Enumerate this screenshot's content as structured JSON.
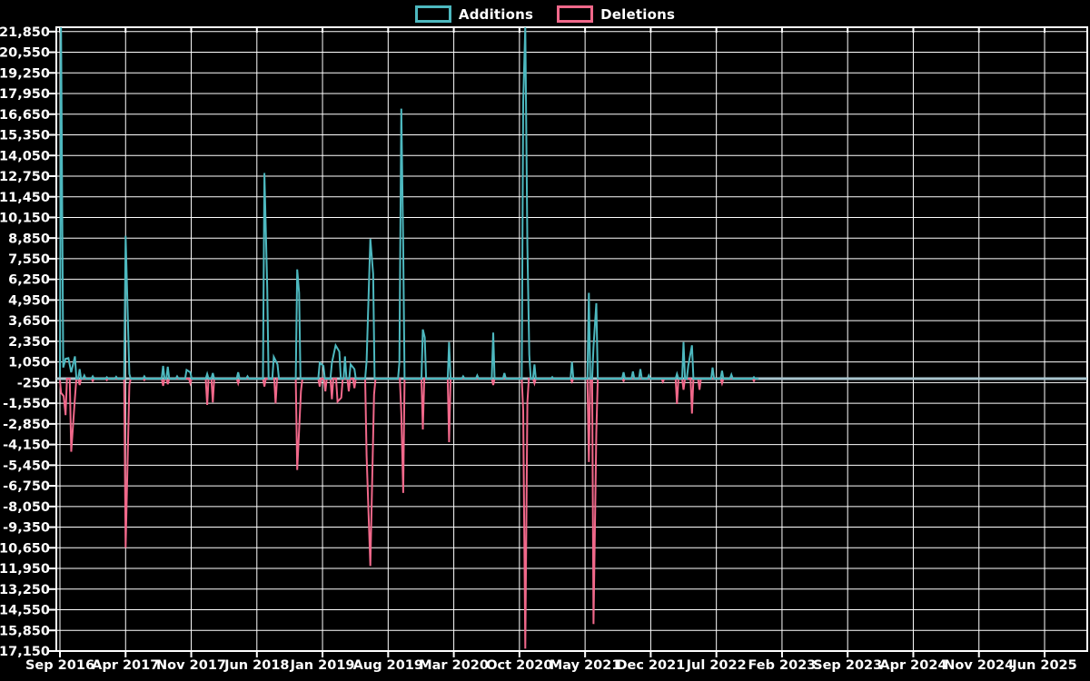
{
  "legend": {
    "additions_label": "Additions",
    "deletions_label": "Deletions"
  },
  "colors": {
    "background": "#000000",
    "grid": "#ffffff",
    "border": "#ffffff",
    "text": "#ffffff",
    "zero_line": "#a9c4ce",
    "additions": "#4db8bf",
    "deletions": "#f0688a"
  },
  "chart_data": {
    "type": "line",
    "title": "",
    "xlabel": "",
    "ylabel": "",
    "grid": true,
    "legend_position": "top-center",
    "x_axis": {
      "labels": [
        "Sep 2016",
        "Apr 2017",
        "Nov 2017",
        "Jun 2018",
        "Jan 2019",
        "Aug 2019",
        "Mar 2020",
        "Oct 2020",
        "May 2021",
        "Dec 2021",
        "Jul 2022",
        "Feb 2023",
        "Sep 2023",
        "Apr 2024",
        "Nov 2024",
        "Jun 2025"
      ],
      "label_interval_months": 7,
      "start": "Sep 2016",
      "end": "Jun 2025"
    },
    "y_axis": {
      "tick_max": 21850,
      "tick_min": -17150,
      "tick_step": 1300,
      "tick_labels": [
        "21,850",
        "20,550",
        "19,250",
        "17,950",
        "16,650",
        "15,350",
        "14,050",
        "12,750",
        "11,450",
        "10,150",
        "8,850",
        "7,550",
        "6,250",
        "4,950",
        "3,650",
        "2,350",
        "1,050",
        "-250",
        "-1,550",
        "-2,850",
        "-4,150",
        "-5,450",
        "-6,750",
        "-8,050",
        "-9,350",
        "-10,650",
        "-11,950",
        "-13,250",
        "-14,550",
        "-15,850",
        "-17,150"
      ]
    },
    "series": [
      {
        "name": "Additions",
        "color_key": "additions",
        "points_unit": "[months_since_Sep2016, lines_added]",
        "points": [
          [
            0.0,
            100
          ],
          [
            0.12,
            22200
          ],
          [
            0.35,
            700
          ],
          [
            0.6,
            1250
          ],
          [
            0.9,
            1300
          ],
          [
            1.2,
            400
          ],
          [
            1.6,
            1400
          ],
          [
            2.1,
            600
          ],
          [
            2.6,
            200
          ],
          [
            3.5,
            150
          ],
          [
            5.0,
            100
          ],
          [
            6.0,
            120
          ],
          [
            7.0,
            8990
          ],
          [
            7.4,
            300
          ],
          [
            9.0,
            150
          ],
          [
            11.0,
            800
          ],
          [
            11.5,
            750
          ],
          [
            12.5,
            150
          ],
          [
            13.5,
            550
          ],
          [
            13.9,
            400
          ],
          [
            15.7,
            300
          ],
          [
            16.3,
            350
          ],
          [
            19.0,
            400
          ],
          [
            20.0,
            150
          ],
          [
            21.8,
            12950
          ],
          [
            22.1,
            5700
          ],
          [
            22.8,
            1370
          ],
          [
            23.2,
            900
          ],
          [
            25.3,
            6880
          ],
          [
            25.5,
            5400
          ],
          [
            27.7,
            1000
          ],
          [
            28.1,
            800
          ],
          [
            29.0,
            1000
          ],
          [
            29.4,
            2100
          ],
          [
            29.8,
            1700
          ],
          [
            30.4,
            1400
          ],
          [
            31.0,
            900
          ],
          [
            31.4,
            600
          ],
          [
            32.7,
            1100
          ],
          [
            33.1,
            8800
          ],
          [
            33.4,
            6600
          ],
          [
            36.2,
            1000
          ],
          [
            36.4,
            17000
          ],
          [
            36.6,
            8300
          ],
          [
            38.7,
            3100
          ],
          [
            38.9,
            2600
          ],
          [
            41.5,
            2300
          ],
          [
            43.0,
            150
          ],
          [
            44.5,
            200
          ],
          [
            46.2,
            2900
          ],
          [
            47.4,
            350
          ],
          [
            49.4,
            17400
          ],
          [
            49.62,
            22200
          ],
          [
            49.85,
            8400
          ],
          [
            50.05,
            1500
          ],
          [
            50.6,
            900
          ],
          [
            52.5,
            100
          ],
          [
            54.6,
            1050
          ],
          [
            56.4,
            5400
          ],
          [
            56.9,
            2000
          ],
          [
            57.2,
            4750
          ],
          [
            60.1,
            400
          ],
          [
            61.1,
            450
          ],
          [
            61.9,
            600
          ],
          [
            62.8,
            200
          ],
          [
            65.8,
            300
          ],
          [
            66.5,
            2300
          ],
          [
            67.0,
            800
          ],
          [
            67.4,
            2100
          ],
          [
            69.6,
            700
          ],
          [
            70.6,
            500
          ],
          [
            71.6,
            250
          ],
          [
            74.0,
            100
          ],
          [
            74.5,
            0
          ]
        ]
      },
      {
        "name": "Deletions",
        "color_key": "deletions",
        "points_unit": "[months_since_Sep2016, lines_deleted_negative]",
        "points": [
          [
            0.0,
            -100
          ],
          [
            0.12,
            -900
          ],
          [
            0.4,
            -1100
          ],
          [
            0.6,
            -2300
          ],
          [
            1.2,
            -4600
          ],
          [
            1.6,
            -1200
          ],
          [
            2.1,
            -400
          ],
          [
            3.5,
            -150
          ],
          [
            5.0,
            -100
          ],
          [
            7.0,
            -10650
          ],
          [
            7.4,
            -400
          ],
          [
            9.0,
            -100
          ],
          [
            11.0,
            -450
          ],
          [
            11.5,
            -350
          ],
          [
            13.9,
            -300
          ],
          [
            15.7,
            -1650
          ],
          [
            16.3,
            -1500
          ],
          [
            19.0,
            -300
          ],
          [
            21.8,
            -500
          ],
          [
            23.0,
            -1560
          ],
          [
            25.3,
            -5750
          ],
          [
            25.7,
            -800
          ],
          [
            27.7,
            -500
          ],
          [
            28.3,
            -800
          ],
          [
            29.0,
            -1300
          ],
          [
            29.6,
            -1450
          ],
          [
            30.0,
            -1200
          ],
          [
            30.8,
            -800
          ],
          [
            31.4,
            -600
          ],
          [
            32.7,
            -4850
          ],
          [
            33.1,
            -11800
          ],
          [
            33.5,
            -1000
          ],
          [
            36.4,
            -2170
          ],
          [
            36.6,
            -7200
          ],
          [
            38.7,
            -3200
          ],
          [
            41.5,
            -4000
          ],
          [
            46.2,
            -400
          ],
          [
            49.4,
            -2000
          ],
          [
            49.62,
            -17000
          ],
          [
            49.85,
            -1500
          ],
          [
            50.6,
            -300
          ],
          [
            54.6,
            -200
          ],
          [
            56.4,
            -5250
          ],
          [
            56.9,
            -15450
          ],
          [
            57.2,
            -3400
          ],
          [
            60.1,
            -150
          ],
          [
            64.3,
            -200
          ],
          [
            65.8,
            -1600
          ],
          [
            66.5,
            -700
          ],
          [
            67.4,
            -2200
          ],
          [
            68.2,
            -700
          ],
          [
            70.6,
            -300
          ],
          [
            74.0,
            -150
          ],
          [
            74.5,
            0
          ]
        ]
      }
    ]
  }
}
